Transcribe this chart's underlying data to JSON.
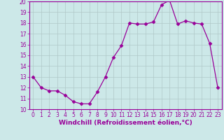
{
  "xlabel": "Windchill (Refroidissement éolien,°C)",
  "hours": [
    0,
    1,
    2,
    3,
    4,
    5,
    6,
    7,
    8,
    9,
    10,
    11,
    12,
    13,
    14,
    15,
    16,
    17,
    18,
    19,
    20,
    21,
    22,
    23
  ],
  "values": [
    13.0,
    12.0,
    11.7,
    11.7,
    11.3,
    10.7,
    10.5,
    10.5,
    11.6,
    13.0,
    14.8,
    15.9,
    18.0,
    17.9,
    17.9,
    18.1,
    19.7,
    20.1,
    17.9,
    18.2,
    18.0,
    17.9,
    16.1,
    12.0
  ],
  "line_color": "#990099",
  "marker": "D",
  "marker_size": 2.5,
  "bg_color": "#cce8e8",
  "grid_color": "#b0c8c8",
  "ylim": [
    10,
    20
  ],
  "yticks": [
    10,
    11,
    12,
    13,
    14,
    15,
    16,
    17,
    18,
    19,
    20
  ],
  "xticks": [
    0,
    1,
    2,
    3,
    4,
    5,
    6,
    7,
    8,
    9,
    10,
    11,
    12,
    13,
    14,
    15,
    16,
    17,
    18,
    19,
    20,
    21,
    22,
    23
  ],
  "tick_color": "#990099",
  "label_color": "#990099",
  "xlabel_fontsize": 6.5,
  "tick_fontsize": 5.5
}
